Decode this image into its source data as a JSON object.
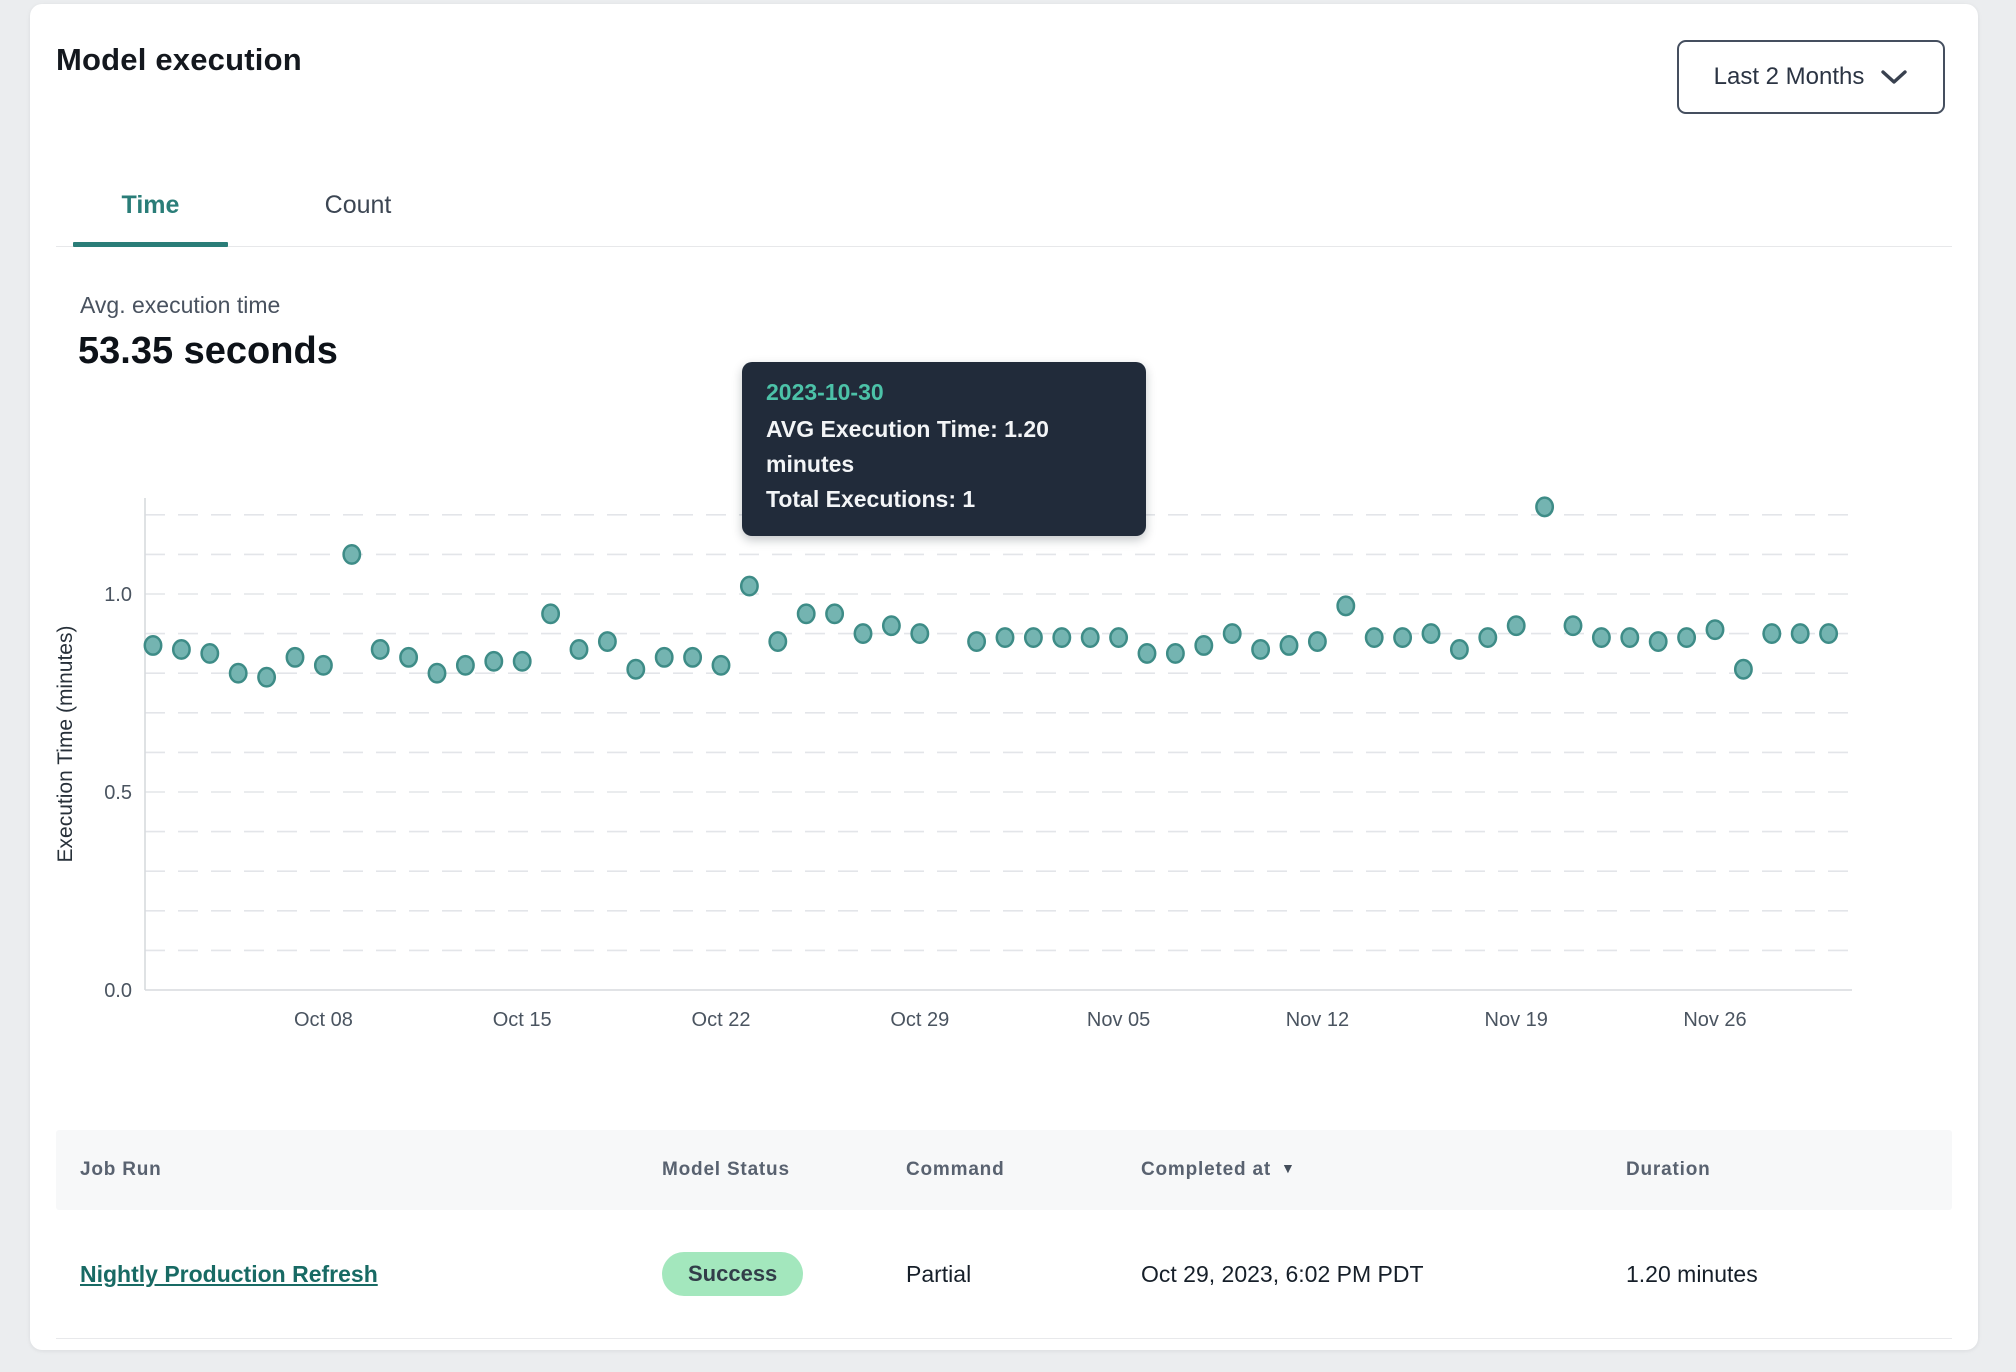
{
  "header": {
    "title": "Model execution",
    "range_label": "Last 2 Months"
  },
  "tabs": [
    {
      "label": "Time",
      "active": true
    },
    {
      "label": "Count",
      "active": false
    }
  ],
  "stats": {
    "label": "Avg. execution time",
    "value": "53.35 seconds"
  },
  "tooltip": {
    "date": "2023-10-30",
    "avg_line": "AVG Execution Time: 1.20 minutes",
    "total_line": "Total Executions: 1"
  },
  "chart_data": {
    "type": "scatter",
    "ylabel": "Execution Time (minutes)",
    "ylim": [
      0,
      1.25
    ],
    "yticks": [
      0,
      0.5,
      1.0
    ],
    "grid": "dashed horizontal every 0.1 from 0.1 to 1.2",
    "legend": "none",
    "x": [
      "Oct 02",
      "Oct 03",
      "Oct 04",
      "Oct 05",
      "Oct 06",
      "Oct 07",
      "Oct 08",
      "Oct 09",
      "Oct 10",
      "Oct 11",
      "Oct 12",
      "Oct 13",
      "Oct 14",
      "Oct 15",
      "Oct 16",
      "Oct 17",
      "Oct 18",
      "Oct 19",
      "Oct 20",
      "Oct 21",
      "Oct 22",
      "Oct 23",
      "Oct 24",
      "Oct 25",
      "Oct 26",
      "Oct 27",
      "Oct 28",
      "Oct 29",
      "Oct 30",
      "Oct 31",
      "Nov 01",
      "Nov 02",
      "Nov 03",
      "Nov 04",
      "Nov 05",
      "Nov 06",
      "Nov 07",
      "Nov 08",
      "Nov 09",
      "Nov 10",
      "Nov 11",
      "Nov 12",
      "Nov 13",
      "Nov 14",
      "Nov 15",
      "Nov 16",
      "Nov 17",
      "Nov 18",
      "Nov 19",
      "Nov 20",
      "Nov 21",
      "Nov 22",
      "Nov 23",
      "Nov 24",
      "Nov 25",
      "Nov 26",
      "Nov 27",
      "Nov 28",
      "Nov 29",
      "Nov 30"
    ],
    "values": [
      0.87,
      0.86,
      0.85,
      0.8,
      0.79,
      0.84,
      0.82,
      1.1,
      0.86,
      0.84,
      0.8,
      0.82,
      0.83,
      0.83,
      0.95,
      0.86,
      0.88,
      0.81,
      0.84,
      0.84,
      0.82,
      1.02,
      0.88,
      0.95,
      0.95,
      0.9,
      0.92,
      0.9,
      1.2,
      0.88,
      0.89,
      0.89,
      0.89,
      0.89,
      0.89,
      0.85,
      0.85,
      0.87,
      0.9,
      0.86,
      0.87,
      0.88,
      0.97,
      0.89,
      0.89,
      0.9,
      0.86,
      0.89,
      0.92,
      1.22,
      0.92,
      0.89,
      0.89,
      0.88,
      0.89,
      0.91,
      0.81,
      0.9,
      0.9,
      0.9
    ],
    "x_tick_labels": [
      "Oct 08",
      "Oct 15",
      "Oct 22",
      "Oct 29",
      "Nov 05",
      "Nov 12",
      "Nov 19",
      "Nov 26"
    ],
    "x_tick_indices": [
      6,
      13,
      20,
      27,
      34,
      41,
      48,
      55
    ],
    "selected_index": 28,
    "selected_point": {
      "date": "2023-10-30",
      "avg_execution_time_minutes": 1.2,
      "total_executions": 1
    },
    "point_fill": "#74b4b1",
    "point_stroke": "#3e8c87",
    "selected_fill": "#4a8e8e",
    "selected_stroke": "#3a7b7c",
    "grid_color": "#e3e5e9",
    "axis_color": "#d7dade",
    "tick_color": "#4a5460",
    "ylabel_color": "#273039"
  },
  "table": {
    "headers": [
      "Job Run",
      "Model Status",
      "Command",
      "Completed at",
      "Duration"
    ],
    "sort_column": "Completed at",
    "sort_caret": "▼",
    "rows": [
      {
        "job_run": "Nightly Production Refresh",
        "model_status": "Success",
        "command": "Partial",
        "completed_at": "Oct 29, 2023, 6:02 PM PDT",
        "duration": "1.20 minutes"
      }
    ]
  },
  "colors": {
    "accent_teal": "#2a7d78",
    "link_teal": "#186a64",
    "badge_bg": "#a3e7bd",
    "badge_text": "#323e49",
    "tooltip_bg": "#212b3a",
    "tooltip_date": "#4cc2a8",
    "page_bg": "#ebedef",
    "card_bg": "#ffffff"
  }
}
